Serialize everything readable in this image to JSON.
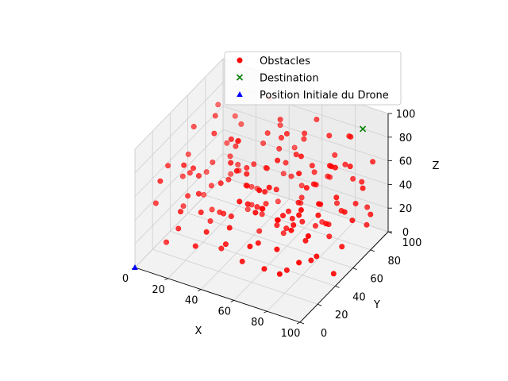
{
  "chart_data": {
    "type": "scatter",
    "projection": "3d",
    "title": "",
    "xlabel": "X",
    "ylabel": "Y",
    "zlabel": "Z",
    "xlim": [
      0,
      100
    ],
    "ylim": [
      0,
      100
    ],
    "zlim": [
      0,
      100
    ],
    "x_ticks": [
      "0",
      "20",
      "40",
      "60",
      "80",
      "100"
    ],
    "y_ticks": [
      "0",
      "20",
      "40",
      "60",
      "80",
      "100"
    ],
    "z_ticks": [
      "0",
      "20",
      "40",
      "60",
      "80",
      "100"
    ],
    "grid": true,
    "legend_position": "upper right",
    "series": [
      {
        "name": "Obstacles",
        "marker": "circle",
        "color": "#ff0000",
        "points": [
          [
            10,
            95,
            60
          ],
          [
            20,
            50,
            20
          ],
          [
            12,
            95,
            40
          ],
          [
            15,
            60,
            50
          ],
          [
            30,
            40,
            30
          ],
          [
            25,
            70,
            45
          ],
          [
            35,
            80,
            60
          ],
          [
            40,
            90,
            70
          ],
          [
            45,
            60,
            20
          ],
          [
            50,
            55,
            35
          ],
          [
            55,
            85,
            15
          ],
          [
            60,
            35,
            65
          ],
          [
            65,
            50,
            25
          ],
          [
            70,
            90,
            40
          ],
          [
            75,
            65,
            55
          ],
          [
            80,
            45,
            70
          ],
          [
            85,
            75,
            30
          ],
          [
            90,
            95,
            20
          ],
          [
            95,
            60,
            45
          ],
          [
            5,
            85,
            75
          ],
          [
            28,
            20,
            60
          ],
          [
            33,
            55,
            80
          ],
          [
            42,
            30,
            85
          ],
          [
            48,
            75,
            90
          ],
          [
            52,
            10,
            50
          ],
          [
            58,
            60,
            10
          ],
          [
            62,
            90,
            85
          ],
          [
            68,
            25,
            80
          ],
          [
            72,
            70,
            15
          ],
          [
            78,
            15,
            40
          ],
          [
            82,
            85,
            60
          ],
          [
            88,
            35,
            20
          ],
          [
            92,
            55,
            85
          ],
          [
            96,
            90,
            65
          ],
          [
            8,
            40,
            25
          ],
          [
            18,
            75,
            30
          ],
          [
            22,
            25,
            75
          ],
          [
            38,
            10,
            40
          ],
          [
            44,
            45,
            55
          ],
          [
            56,
            40,
            45
          ],
          [
            64,
            20,
            35
          ],
          [
            74,
            50,
            90
          ],
          [
            84,
            20,
            55
          ],
          [
            94,
            30,
            30
          ],
          [
            14,
            65,
            85
          ],
          [
            26,
            90,
            10
          ],
          [
            36,
            65,
            20
          ],
          [
            46,
            95,
            50
          ],
          [
            54,
            70,
            60
          ],
          [
            66,
            80,
            50
          ],
          [
            76,
            30,
            10
          ],
          [
            86,
            60,
            80
          ],
          [
            98,
            75,
            55
          ],
          [
            3,
            55,
            55
          ],
          [
            16,
            30,
            45
          ],
          [
            24,
            45,
            90
          ],
          [
            34,
            85,
            35
          ],
          [
            41,
            50,
            65
          ],
          [
            57,
            15,
            20
          ],
          [
            63,
            65,
            75
          ],
          [
            69,
            45,
            45
          ],
          [
            77,
            85,
            25
          ],
          [
            81,
            10,
            70
          ],
          [
            89,
            50,
            40
          ],
          [
            97,
            15,
            60
          ],
          [
            11,
            15,
            15
          ],
          [
            19,
            85,
            65
          ],
          [
            29,
            60,
            70
          ],
          [
            39,
            25,
            15
          ],
          [
            49,
            35,
            75
          ],
          [
            53,
            90,
            25
          ],
          [
            61,
            75,
            30
          ],
          [
            67,
            5,
            45
          ],
          [
            71,
            35,
            50
          ],
          [
            79,
            95,
            75
          ],
          [
            83,
            65,
            15
          ],
          [
            91,
            80,
            35
          ],
          [
            99,
            40,
            10
          ],
          [
            6,
            70,
            30
          ],
          [
            27,
            35,
            25
          ],
          [
            31,
            95,
            85
          ],
          [
            43,
            70,
            80
          ],
          [
            51,
            20,
            90
          ],
          [
            59,
            50,
            55
          ],
          [
            73,
            10,
            25
          ],
          [
            87,
            45,
            50
          ],
          [
            93,
            70,
            75
          ],
          [
            13,
            80,
            50
          ],
          [
            21,
            10,
            35
          ],
          [
            37,
            40,
            95
          ],
          [
            47,
            15,
            30
          ],
          [
            57,
            85,
            70
          ],
          [
            65,
            40,
            90
          ],
          [
            75,
            80,
            85
          ],
          [
            85,
            5,
            30
          ],
          [
            95,
            45,
            95
          ],
          [
            4,
            30,
            65
          ],
          [
            17,
            55,
            35
          ],
          [
            23,
            65,
            55
          ],
          [
            32,
            15,
            50
          ],
          [
            44,
            80,
            15
          ],
          [
            55,
            25,
            60
          ],
          [
            60,
            60,
            95
          ],
          [
            66,
            95,
            35
          ],
          [
            72,
            55,
            30
          ],
          [
            78,
            40,
            85
          ],
          [
            84,
            90,
            45
          ],
          [
            90,
            20,
            75
          ],
          [
            96,
            55,
            20
          ],
          [
            9,
            50,
            85
          ],
          [
            15,
            90,
            20
          ],
          [
            36,
            30,
            65
          ],
          [
            40,
            75,
            45
          ],
          [
            46,
            55,
            10
          ],
          [
            58,
            10,
            75
          ],
          [
            62,
            45,
            30
          ],
          [
            70,
            70,
            65
          ],
          [
            76,
            20,
            60
          ],
          [
            82,
            40,
            30
          ],
          [
            88,
            80,
            90
          ],
          [
            94,
            10,
            40
          ],
          [
            2,
            20,
            40
          ],
          [
            12,
            40,
            55
          ],
          [
            28,
            80,
            20
          ],
          [
            34,
            5,
            30
          ],
          [
            42,
            90,
            30
          ],
          [
            50,
            45,
            40
          ],
          [
            54,
            65,
            85
          ],
          [
            68,
            85,
            5
          ],
          [
            74,
            40,
            45
          ],
          [
            80,
            70,
            20
          ],
          [
            86,
            25,
            65
          ],
          [
            92,
            85,
            50
          ],
          [
            98,
            25,
            80
          ],
          [
            7,
            65,
            15
          ],
          [
            19,
            20,
            80
          ],
          [
            25,
            5,
            55
          ],
          [
            31,
            70,
            10
          ],
          [
            38,
            55,
            45
          ],
          [
            45,
            25,
            45
          ],
          [
            52,
            80,
            40
          ],
          [
            61,
            30,
            55
          ],
          [
            67,
            60,
            40
          ],
          [
            73,
            90,
            60
          ],
          [
            79,
            55,
            65
          ],
          [
            91,
            40,
            65
          ],
          [
            97,
            65,
            35
          ],
          [
            10,
            10,
            70
          ],
          [
            20,
            35,
            60
          ],
          [
            30,
            50,
            50
          ],
          [
            40,
            60,
            60
          ],
          [
            50,
            70,
            70
          ],
          [
            60,
            80,
            80
          ],
          [
            70,
            10,
            90
          ],
          [
            80,
            30,
            50
          ],
          [
            90,
            60,
            55
          ],
          [
            100,
            80,
            30
          ],
          [
            5,
            45,
            45
          ],
          [
            35,
            35,
            35
          ],
          [
            65,
            15,
            65
          ],
          [
            95,
            85,
            15
          ]
        ]
      },
      {
        "name": "Destination",
        "marker": "x",
        "color": "#008000",
        "points": [
          [
            90,
            90,
            90
          ]
        ]
      },
      {
        "name": "Position Initiale du Drone",
        "marker": "triangle",
        "color": "#0000ff",
        "points": [
          [
            0,
            0,
            0
          ]
        ]
      }
    ]
  }
}
